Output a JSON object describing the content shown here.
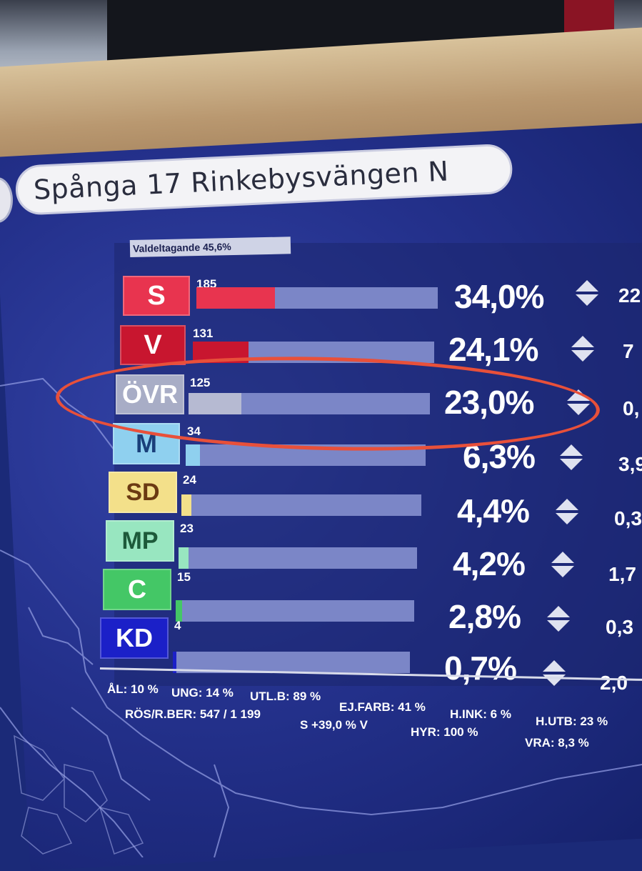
{
  "header": {
    "title": "Spånga 17 Rinkebysvängen N"
  },
  "turnout": {
    "label": "Valdeltagande 45,6%"
  },
  "parties": [
    {
      "code": "S",
      "votes": "185",
      "percent": "34,0%",
      "change": "22",
      "share": 0.34,
      "badge_bg": "#e8344f",
      "badge_fg": "#ffffff",
      "fill": "#e8344f"
    },
    {
      "code": "V",
      "votes": "131",
      "percent": "24,1%",
      "change": "7",
      "share": 0.241,
      "badge_bg": "#c8162f",
      "badge_fg": "#ffffff",
      "fill": "#c8162f"
    },
    {
      "code": "ÖVR",
      "votes": "125",
      "percent": "23,0%",
      "change": "0,",
      "share": 0.23,
      "badge_bg": "#a8adc6",
      "badge_fg": "#ffffff",
      "fill": "#b6bad2"
    },
    {
      "code": "M",
      "votes": "34",
      "percent": "6,3%",
      "change": "3,9",
      "share": 0.063,
      "badge_bg": "#8fd0ef",
      "badge_fg": "#1a3f7a",
      "fill": "#8fd0ef"
    },
    {
      "code": "SD",
      "votes": "24",
      "percent": "4,4%",
      "change": "0,3",
      "share": 0.044,
      "badge_bg": "#f3e08a",
      "badge_fg": "#6b3a12",
      "fill": "#f3e08a"
    },
    {
      "code": "MP",
      "votes": "23",
      "percent": "4,2%",
      "change": "1,7",
      "share": 0.042,
      "badge_bg": "#98e6c0",
      "badge_fg": "#1d5a3a",
      "fill": "#98e6c0"
    },
    {
      "code": "C",
      "votes": "15",
      "percent": "2,8%",
      "change": "0,3",
      "share": 0.028,
      "badge_bg": "#44c766",
      "badge_fg": "#ffffff",
      "fill": "#44c766"
    },
    {
      "code": "KD",
      "votes": "4",
      "percent": "0,7%",
      "change": "2,0",
      "share": 0.007,
      "badge_bg": "#1b20c8",
      "badge_fg": "#ffffff",
      "fill": "#1b20c8"
    }
  ],
  "footer": {
    "al": "ÅL: 10 %",
    "ung": "UNG: 14 %",
    "utlb": "UTL.B: 89 %",
    "ejfarb": "EJ.FARB: 41 %",
    "hink": "H.INK: 6 %",
    "hutb": "H.UTB: 23 %",
    "rosrber": "RÖS/R.BER: 547 / 1 199",
    "swing": "S +39,0 % V",
    "hyr": "HYR: 100 %",
    "vra": "VRA: 8,3 %"
  }
}
